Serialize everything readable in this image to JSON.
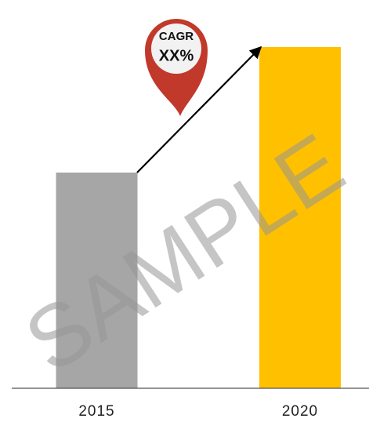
{
  "chart_data": {
    "type": "bar",
    "categories": [
      "2015",
      "2020"
    ],
    "values": [
      275,
      435
    ],
    "colors": [
      "#a6a6a6",
      "#ffc000"
    ],
    "ylim": [
      0,
      495
    ],
    "annotation": {
      "title": "CAGR",
      "value": "XX%"
    },
    "watermark": "SAMPLE"
  }
}
